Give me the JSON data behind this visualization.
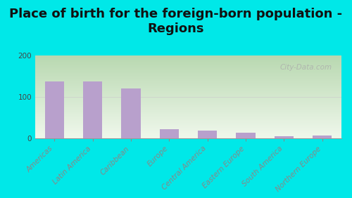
{
  "title": "Place of birth for the foreign-born population -\nRegions",
  "categories": [
    "Americas",
    "Latin America",
    "Caribbean",
    "Europe",
    "Central America",
    "Eastern Europe",
    "South America",
    "Northern Europe"
  ],
  "values": [
    138,
    137,
    120,
    22,
    20,
    14,
    5,
    8
  ],
  "bar_color": "#b8a0cc",
  "background_outer": "#00e8e8",
  "ylim": [
    0,
    200
  ],
  "yticks": [
    0,
    100,
    200
  ],
  "title_fontsize": 13,
  "tick_fontsize": 7.5,
  "watermark": "City-Data.com",
  "grad_top_left": "#b8d8b0",
  "grad_bottom_right": "#f0f8ec"
}
